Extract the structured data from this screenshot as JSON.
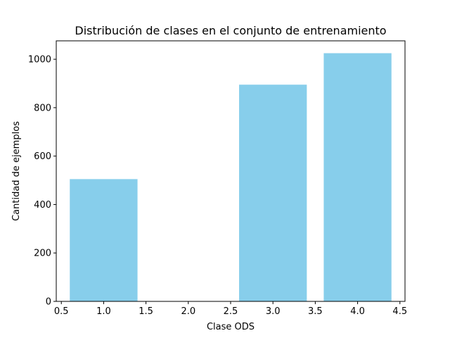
{
  "chart_data": {
    "type": "bar",
    "title": "Distribución de clases en el conjunto de entrenamiento",
    "xlabel": "Clase ODS",
    "ylabel": "Cantidad de ejemplos",
    "x": [
      1,
      3,
      4
    ],
    "values": [
      505,
      895,
      1025
    ],
    "bar_width": 0.8,
    "bar_color": "#87ceeb",
    "xlim": [
      0.44,
      4.56
    ],
    "ylim": [
      0,
      1076
    ],
    "xticks": [
      0.5,
      1.0,
      1.5,
      2.0,
      2.5,
      3.0,
      3.5,
      4.0,
      4.5
    ],
    "xtick_labels": [
      "0.5",
      "1.0",
      "1.5",
      "2.0",
      "2.5",
      "3.0",
      "3.5",
      "4.0",
      "4.5"
    ],
    "yticks": [
      0,
      200,
      400,
      600,
      800,
      1000
    ],
    "ytick_labels": [
      "0",
      "200",
      "400",
      "600",
      "800",
      "1000"
    ],
    "grid": false,
    "legend": false
  }
}
